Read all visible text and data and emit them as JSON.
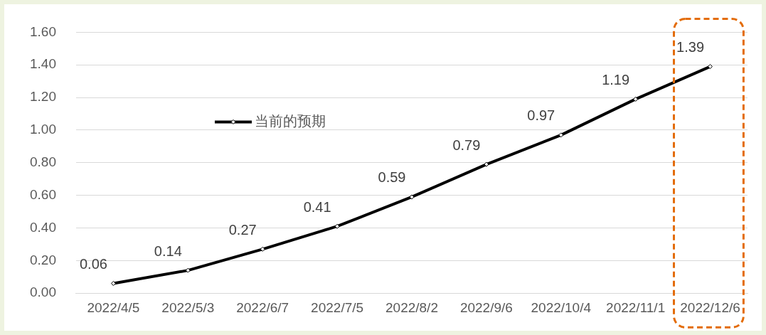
{
  "chart_data": {
    "type": "line",
    "categories": [
      "2022/4/5",
      "2022/5/3",
      "2022/6/7",
      "2022/7/5",
      "2022/8/2",
      "2022/9/6",
      "2022/10/4",
      "2022/11/1",
      "2022/12/6"
    ],
    "series": [
      {
        "name": "当前的预期",
        "color": "#000000",
        "values": [
          0.06,
          0.14,
          0.27,
          0.41,
          0.59,
          0.79,
          0.97,
          1.19,
          1.39
        ]
      }
    ],
    "ylim": [
      0,
      1.6
    ],
    "yticks": [
      {
        "value": 0,
        "label": "0.00"
      },
      {
        "value": 0.2,
        "label": "0.20"
      },
      {
        "value": 0.4,
        "label": "0.40"
      },
      {
        "value": 0.6,
        "label": "0.60"
      },
      {
        "value": 0.8,
        "label": "0.80"
      },
      {
        "value": 1,
        "label": "1.00"
      },
      {
        "value": 1.2,
        "label": "1.20"
      },
      {
        "value": 1.4,
        "label": "1.40"
      },
      {
        "value": 1.6,
        "label": "1.60"
      }
    ],
    "grid": "y",
    "legend": "top left",
    "marker": "diamond",
    "line_style": "solid",
    "data_labels": true
  }
}
